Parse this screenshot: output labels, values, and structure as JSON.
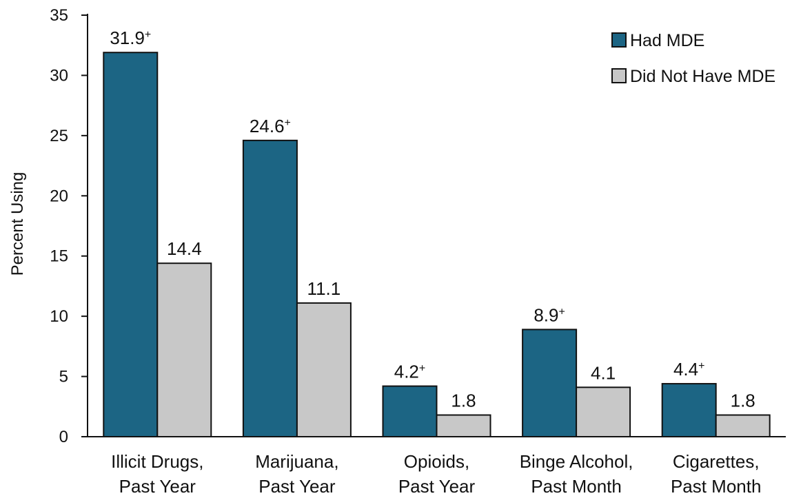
{
  "chart_data": {
    "type": "bar",
    "title": "",
    "xlabel": "",
    "ylabel": "Percent Using",
    "ylim": [
      0,
      35
    ],
    "yticks": [
      0,
      5,
      10,
      15,
      20,
      25,
      30,
      35
    ],
    "grid": false,
    "legend_position": "top-right",
    "categories": [
      [
        "Illicit Drugs,",
        "Past Year"
      ],
      [
        "Marijuana,",
        "Past Year"
      ],
      [
        "Opioids,",
        "Past Year"
      ],
      [
        "Binge Alcohol,",
        "Past Month"
      ],
      [
        "Cigarettes,",
        "Past Month"
      ]
    ],
    "series": [
      {
        "name": "Had MDE",
        "color": "#1c6584",
        "values": [
          31.9,
          24.6,
          4.2,
          8.9,
          4.4
        ],
        "labels": [
          "31.9",
          "24.6",
          "4.2",
          "8.9",
          "4.4"
        ],
        "label_suffix": "+"
      },
      {
        "name": "Did Not Have MDE",
        "color": "#c8c8c8",
        "values": [
          14.4,
          11.1,
          1.8,
          4.1,
          1.8
        ],
        "labels": [
          "14.4",
          "11.1",
          "1.8",
          "4.1",
          "1.8"
        ],
        "label_suffix": ""
      }
    ]
  }
}
